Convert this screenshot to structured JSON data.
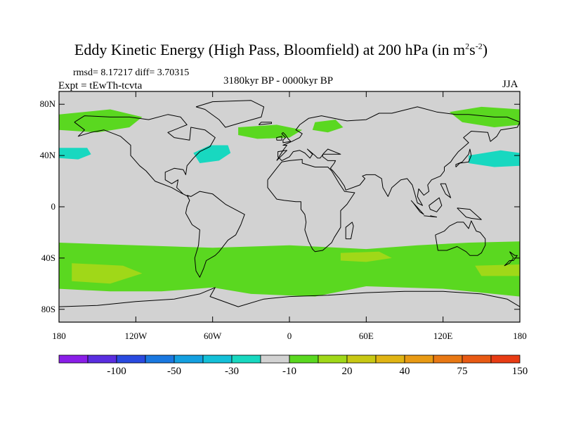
{
  "title": {
    "main": "Eddy Kinetic Energy (High Pass, Bloomfield) at 200 hPa (in m",
    "sup1": "2",
    "mid": "s",
    "sup2": "-2",
    "end": ")"
  },
  "stats": "rmsd= 8.17217 diff= 3.70315",
  "experiment": "Expt = tEwTh-tcvta",
  "period": "3180kyr BP - 0000kyr BP",
  "season": "JJA",
  "axes": {
    "lat_ticks": [
      {
        "value": 80,
        "label": "80N"
      },
      {
        "value": 40,
        "label": "40N"
      },
      {
        "value": 0,
        "label": "0"
      },
      {
        "value": -40,
        "label": "40S"
      },
      {
        "value": -80,
        "label": "80S"
      }
    ],
    "lon_ticks": [
      {
        "value": -180,
        "label": "180"
      },
      {
        "value": -120,
        "label": "120W"
      },
      {
        "value": -60,
        "label": "60W"
      },
      {
        "value": 0,
        "label": "0"
      },
      {
        "value": 60,
        "label": "60E"
      },
      {
        "value": 120,
        "label": "120E"
      },
      {
        "value": 180,
        "label": "180"
      }
    ],
    "lat_range": [
      -90,
      90
    ],
    "lon_range": [
      -180,
      180
    ]
  },
  "colorbar": {
    "colors": [
      "#8a1ee8",
      "#5a2ee0",
      "#2a4ae0",
      "#1a78e0",
      "#14a0e0",
      "#14c0d8",
      "#18d8c0",
      "#d2d2d2",
      "#5ad820",
      "#a0d818",
      "#c8c814",
      "#e0b414",
      "#e89a14",
      "#e87814",
      "#e85a14",
      "#e83c14"
    ],
    "labels": [
      {
        "boundary": 2,
        "text": "-100"
      },
      {
        "boundary": 4,
        "text": "-50"
      },
      {
        "boundary": 6,
        "text": "-30"
      },
      {
        "boundary": 8,
        "text": "-10"
      },
      {
        "boundary": 10,
        "text": "20"
      },
      {
        "boundary": 12,
        "text": "40"
      },
      {
        "boundary": 14,
        "text": "75"
      },
      {
        "boundary": 16,
        "text": "150"
      }
    ]
  },
  "regions": [
    {
      "name": "north-pacific-positive-band",
      "color": "#5ad820",
      "polygon": [
        [
          -180,
          72
        ],
        [
          -140,
          76
        ],
        [
          -115,
          70
        ],
        [
          -125,
          62
        ],
        [
          -150,
          58
        ],
        [
          -180,
          60
        ]
      ]
    },
    {
      "name": "north-pacific-negative-anomaly",
      "color": "#18d8c0",
      "polygon": [
        [
          -180,
          46
        ],
        [
          -158,
          46
        ],
        [
          -155,
          41
        ],
        [
          -165,
          37
        ],
        [
          -180,
          38
        ]
      ]
    },
    {
      "name": "north-atlantic-negative-anomaly",
      "color": "#18d8c0",
      "polygon": [
        [
          -75,
          42
        ],
        [
          -62,
          48
        ],
        [
          -48,
          48
        ],
        [
          -46,
          42
        ],
        [
          -55,
          36
        ],
        [
          -70,
          34
        ]
      ]
    },
    {
      "name": "north-atlantic-positive-band",
      "color": "#5ad820",
      "polygon": [
        [
          -40,
          62
        ],
        [
          -10,
          64
        ],
        [
          10,
          60
        ],
        [
          0,
          54
        ],
        [
          -25,
          53
        ],
        [
          -40,
          56
        ]
      ]
    },
    {
      "name": "europe-positive-patch",
      "color": "#5ad820",
      "polygon": [
        [
          20,
          66
        ],
        [
          36,
          68
        ],
        [
          42,
          62
        ],
        [
          30,
          58
        ],
        [
          18,
          60
        ]
      ]
    },
    {
      "name": "northwest-pacific-positive-band",
      "color": "#5ad820",
      "polygon": [
        [
          125,
          74
        ],
        [
          150,
          78
        ],
        [
          180,
          76
        ],
        [
          180,
          64
        ],
        [
          160,
          62
        ],
        [
          135,
          66
        ]
      ]
    },
    {
      "name": "northwest-pacific-negative-anomaly",
      "color": "#18d8c0",
      "polygon": [
        [
          140,
          40
        ],
        [
          165,
          44
        ],
        [
          180,
          42
        ],
        [
          180,
          32
        ],
        [
          160,
          31
        ],
        [
          140,
          34
        ]
      ]
    },
    {
      "name": "southern-hemisphere-positive-band",
      "color": "#5ad820",
      "polygon": [
        [
          -180,
          -28
        ],
        [
          -120,
          -30
        ],
        [
          -60,
          -32
        ],
        [
          0,
          -30
        ],
        [
          60,
          -33
        ],
        [
          100,
          -30
        ],
        [
          140,
          -28
        ],
        [
          180,
          -27
        ],
        [
          180,
          -70
        ],
        [
          120,
          -64
        ],
        [
          60,
          -62
        ],
        [
          20,
          -70
        ],
        [
          -30,
          -68
        ],
        [
          -60,
          -63
        ],
        [
          -100,
          -66
        ],
        [
          -140,
          -66
        ],
        [
          -180,
          -64
        ]
      ]
    },
    {
      "name": "south-pacific-strong-positive",
      "color": "#a0d818",
      "polygon": [
        [
          -170,
          -44
        ],
        [
          -130,
          -46
        ],
        [
          -115,
          -52
        ],
        [
          -140,
          -60
        ],
        [
          -170,
          -58
        ]
      ]
    },
    {
      "name": "south-indian-strong-positive",
      "color": "#a0d818",
      "polygon": [
        [
          40,
          -36
        ],
        [
          70,
          -35
        ],
        [
          80,
          -40
        ],
        [
          60,
          -43
        ],
        [
          40,
          -42
        ]
      ]
    },
    {
      "name": "south-australia-strong-positive",
      "color": "#a0d818",
      "polygon": [
        [
          145,
          -46
        ],
        [
          180,
          -45
        ],
        [
          180,
          -54
        ],
        [
          150,
          -54
        ]
      ]
    }
  ],
  "coastlines": [
    [
      [
        -168,
        66
      ],
      [
        -160,
        71
      ],
      [
        -140,
        70
      ],
      [
        -125,
        70
      ],
      [
        -110,
        68
      ],
      [
        -95,
        72
      ],
      [
        -85,
        70
      ],
      [
        -80,
        64
      ],
      [
        -95,
        58
      ],
      [
        -90,
        54
      ],
      [
        -78,
        52
      ],
      [
        -77,
        62
      ],
      [
        -66,
        60
      ],
      [
        -58,
        54
      ],
      [
        -62,
        47
      ],
      [
        -70,
        43
      ],
      [
        -75,
        38
      ],
      [
        -80,
        32
      ],
      [
        -81,
        25
      ],
      [
        -83,
        29
      ],
      [
        -90,
        30
      ],
      [
        -97,
        27
      ],
      [
        -97,
        21
      ],
      [
        -92,
        18
      ],
      [
        -87,
        21
      ],
      [
        -88,
        15
      ],
      [
        -83,
        10
      ],
      [
        -79,
        8
      ],
      [
        -85,
        11
      ],
      [
        -92,
        15
      ],
      [
        -105,
        20
      ],
      [
        -112,
        28
      ],
      [
        -117,
        32
      ],
      [
        -124,
        40
      ],
      [
        -124,
        48
      ],
      [
        -132,
        55
      ],
      [
        -145,
        60
      ],
      [
        -155,
        58
      ],
      [
        -165,
        55
      ],
      [
        -160,
        60
      ],
      [
        -168,
        66
      ]
    ],
    [
      [
        -73,
        78
      ],
      [
        -60,
        82
      ],
      [
        -30,
        83
      ],
      [
        -20,
        78
      ],
      [
        -22,
        70
      ],
      [
        -40,
        65
      ],
      [
        -50,
        62
      ],
      [
        -55,
        68
      ],
      [
        -66,
        76
      ],
      [
        -73,
        78
      ]
    ],
    [
      [
        -80,
        9
      ],
      [
        -77,
        8
      ],
      [
        -70,
        12
      ],
      [
        -60,
        10
      ],
      [
        -50,
        2
      ],
      [
        -35,
        -6
      ],
      [
        -38,
        -14
      ],
      [
        -42,
        -22
      ],
      [
        -48,
        -26
      ],
      [
        -55,
        -35
      ],
      [
        -58,
        -38
      ],
      [
        -65,
        -42
      ],
      [
        -67,
        -48
      ],
      [
        -70,
        -55
      ],
      [
        -73,
        -50
      ],
      [
        -74,
        -40
      ],
      [
        -71,
        -30
      ],
      [
        -70,
        -18
      ],
      [
        -76,
        -14
      ],
      [
        -81,
        -5
      ],
      [
        -80,
        0
      ],
      [
        -78,
        5
      ],
      [
        -80,
        9
      ]
    ],
    [
      [
        -10,
        36
      ],
      [
        -5,
        44
      ],
      [
        -2,
        48
      ],
      [
        -5,
        48
      ],
      [
        2,
        51
      ],
      [
        8,
        54
      ],
      [
        10,
        57
      ],
      [
        5,
        60
      ],
      [
        8,
        64
      ],
      [
        15,
        69
      ],
      [
        25,
        71
      ],
      [
        40,
        68
      ],
      [
        45,
        67
      ],
      [
        60,
        68
      ],
      [
        70,
        73
      ],
      [
        80,
        73
      ],
      [
        100,
        78
      ],
      [
        115,
        74
      ],
      [
        130,
        72
      ],
      [
        140,
        72
      ],
      [
        160,
        70
      ],
      [
        170,
        70
      ],
      [
        180,
        66
      ],
      [
        178,
        62
      ],
      [
        165,
        60
      ],
      [
        162,
        55
      ],
      [
        157,
        51
      ],
      [
        155,
        58
      ],
      [
        142,
        59
      ],
      [
        136,
        54
      ],
      [
        140,
        50
      ],
      [
        132,
        43
      ],
      [
        128,
        38
      ],
      [
        126,
        35
      ],
      [
        121,
        31
      ],
      [
        121,
        28
      ],
      [
        118,
        24
      ],
      [
        111,
        21
      ],
      [
        108,
        17
      ],
      [
        109,
        12
      ],
      [
        105,
        9
      ],
      [
        101,
        14
      ],
      [
        100,
        8
      ],
      [
        104,
        1
      ],
      [
        100,
        3
      ],
      [
        98,
        10
      ],
      [
        96,
        17
      ],
      [
        92,
        22
      ],
      [
        87,
        21
      ],
      [
        80,
        15
      ],
      [
        77,
        8
      ],
      [
        73,
        15
      ],
      [
        72,
        22
      ],
      [
        67,
        25
      ],
      [
        60,
        25
      ],
      [
        57,
        24
      ],
      [
        59,
        22
      ],
      [
        55,
        17
      ],
      [
        44,
        13
      ],
      [
        43,
        16
      ],
      [
        39,
        22
      ],
      [
        34,
        28
      ],
      [
        32,
        30
      ],
      [
        35,
        34
      ],
      [
        36,
        36
      ],
      [
        30,
        36
      ],
      [
        26,
        39
      ],
      [
        26,
        41
      ],
      [
        29,
        41
      ],
      [
        40,
        41
      ],
      [
        30,
        45
      ],
      [
        27,
        42
      ],
      [
        24,
        38
      ],
      [
        22,
        38
      ],
      [
        20,
        40
      ],
      [
        14,
        45
      ],
      [
        18,
        41
      ],
      [
        16,
        38
      ],
      [
        12,
        42
      ],
      [
        8,
        44
      ],
      [
        3,
        43
      ],
      [
        0,
        39
      ],
      [
        -6,
        36
      ],
      [
        -9,
        39
      ],
      [
        -9,
        43
      ],
      [
        -2,
        44
      ],
      [
        -10,
        36
      ]
    ],
    [
      [
        -17,
        21
      ],
      [
        -17,
        15
      ],
      [
        -10,
        6
      ],
      [
        -4,
        5
      ],
      [
        5,
        4
      ],
      [
        9,
        4
      ],
      [
        9,
        -2
      ],
      [
        12,
        -6
      ],
      [
        13,
        -12
      ],
      [
        12,
        -18
      ],
      [
        15,
        -27
      ],
      [
        18,
        -33
      ],
      [
        20,
        -35
      ],
      [
        26,
        -34
      ],
      [
        33,
        -28
      ],
      [
        35,
        -24
      ],
      [
        40,
        -16
      ],
      [
        40,
        -10
      ],
      [
        40,
        -3
      ],
      [
        45,
        2
      ],
      [
        51,
        11
      ],
      [
        43,
        12
      ],
      [
        39,
        18
      ],
      [
        33,
        28
      ],
      [
        30,
        31
      ],
      [
        20,
        31
      ],
      [
        10,
        34
      ],
      [
        10,
        37
      ],
      [
        0,
        36
      ],
      [
        -6,
        35
      ],
      [
        -10,
        30
      ],
      [
        -17,
        21
      ]
    ],
    [
      [
        114,
        -22
      ],
      [
        116,
        -34
      ],
      [
        123,
        -34
      ],
      [
        131,
        -31
      ],
      [
        138,
        -35
      ],
      [
        141,
        -38
      ],
      [
        147,
        -38
      ],
      [
        150,
        -36
      ],
      [
        153,
        -30
      ],
      [
        153,
        -25
      ],
      [
        149,
        -20
      ],
      [
        146,
        -19
      ],
      [
        142,
        -11
      ],
      [
        140,
        -17
      ],
      [
        136,
        -12
      ],
      [
        131,
        -12
      ],
      [
        125,
        -15
      ],
      [
        121,
        -19
      ],
      [
        114,
        -22
      ]
    ],
    [
      [
        172,
        -35
      ],
      [
        176,
        -38
      ],
      [
        178,
        -38
      ],
      [
        175,
        -42
      ],
      [
        172,
        -42
      ],
      [
        168,
        -46
      ],
      [
        172,
        -44
      ],
      [
        175,
        -40
      ],
      [
        172,
        -35
      ]
    ],
    [
      [
        44,
        -25
      ],
      [
        48,
        -25
      ],
      [
        50,
        -15
      ],
      [
        49,
        -12
      ],
      [
        44,
        -16
      ],
      [
        44,
        -25
      ]
    ],
    [
      [
        -5,
        58
      ],
      [
        -3,
        56
      ],
      [
        -1,
        53
      ],
      [
        1,
        51
      ],
      [
        -5,
        50
      ],
      [
        -5,
        52
      ],
      [
        -3,
        54
      ],
      [
        -6,
        57
      ],
      [
        -5,
        58
      ]
    ],
    [
      [
        -10,
        52
      ],
      [
        -6,
        52
      ],
      [
        -6,
        55
      ],
      [
        -10,
        54
      ],
      [
        -10,
        52
      ]
    ],
    [
      [
        -24,
        64
      ],
      [
        -14,
        65
      ],
      [
        -14,
        66
      ],
      [
        -22,
        66
      ],
      [
        -24,
        64
      ]
    ],
    [
      [
        130,
        31
      ],
      [
        133,
        34
      ],
      [
        140,
        35
      ],
      [
        142,
        40
      ],
      [
        141,
        45
      ],
      [
        140,
        41
      ],
      [
        135,
        35
      ],
      [
        130,
        33
      ],
      [
        130,
        31
      ]
    ],
    [
      [
        95,
        5
      ],
      [
        105,
        -6
      ],
      [
        102,
        -4
      ],
      [
        96,
        4
      ]
    ],
    [
      [
        105,
        -7
      ],
      [
        115,
        -8
      ],
      [
        110,
        -7
      ]
    ],
    [
      [
        109,
        1
      ],
      [
        117,
        7
      ],
      [
        119,
        1
      ],
      [
        115,
        -4
      ],
      [
        110,
        -2
      ],
      [
        109,
        1
      ]
    ],
    [
      [
        131,
        -1
      ],
      [
        141,
        -2
      ],
      [
        150,
        -10
      ],
      [
        142,
        -9
      ],
      [
        138,
        -8
      ],
      [
        131,
        -1
      ]
    ],
    [
      [
        118,
        18
      ],
      [
        122,
        18
      ],
      [
        124,
        12
      ],
      [
        126,
        7
      ],
      [
        122,
        10
      ],
      [
        120,
        14
      ],
      [
        118,
        18
      ]
    ],
    [
      [
        -180,
        -78
      ],
      [
        -150,
        -77
      ],
      [
        -120,
        -74
      ],
      [
        -90,
        -72
      ],
      [
        -70,
        -68
      ],
      [
        -58,
        -63
      ],
      [
        -62,
        -70
      ],
      [
        -40,
        -78
      ],
      [
        -20,
        -72
      ],
      [
        0,
        -70
      ],
      [
        30,
        -69
      ],
      [
        60,
        -67
      ],
      [
        90,
        -66
      ],
      [
        120,
        -66
      ],
      [
        150,
        -68
      ],
      [
        170,
        -72
      ],
      [
        180,
        -78
      ]
    ]
  ]
}
